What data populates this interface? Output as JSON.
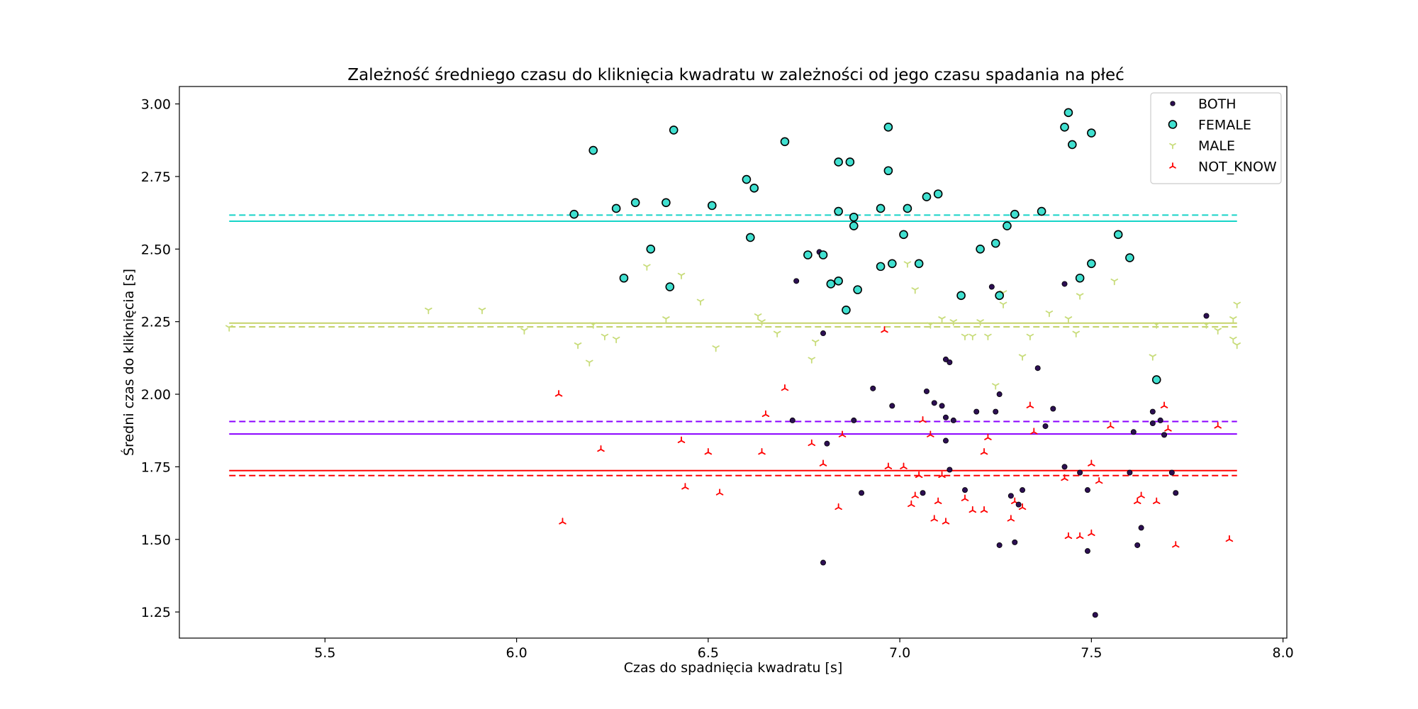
{
  "chart_data": {
    "type": "scatter",
    "title": "Zależność średniego czasu do kliknięcia kwadratu w zależności od jego czasu spadania na płeć",
    "xlabel": "Czas do spadnięcia kwadratu [s]",
    "ylabel": "Średni czas do kliknięcia [s]",
    "xlim": [
      5.12,
      8.01
    ],
    "ylim": [
      1.16,
      3.06
    ],
    "xticks": [
      5.5,
      6.0,
      6.5,
      7.0,
      7.5,
      8.0
    ],
    "xtick_labels": [
      "5.5",
      "6.0",
      "6.5",
      "7.0",
      "7.5",
      "8.0"
    ],
    "yticks": [
      1.25,
      1.5,
      1.75,
      2.0,
      2.25,
      2.5,
      2.75,
      3.0
    ],
    "ytick_labels": [
      "1.25",
      "1.50",
      "1.75",
      "2.00",
      "2.25",
      "2.50",
      "2.75",
      "3.00"
    ],
    "grid": false,
    "legend_position": "top-right",
    "reference_lines_x_range": [
      5.25,
      7.88
    ],
    "series": [
      {
        "name": "BOTH",
        "marker": "dot",
        "color": "#2c0f52",
        "mean_solid": 1.863,
        "median_dashed": 1.906,
        "points": [
          [
            6.73,
            2.39
          ],
          [
            6.79,
            2.49
          ],
          [
            6.8,
            2.21
          ],
          [
            6.72,
            1.91
          ],
          [
            6.81,
            1.83
          ],
          [
            6.8,
            1.42
          ],
          [
            6.88,
            1.91
          ],
          [
            6.9,
            1.66
          ],
          [
            6.93,
            2.02
          ],
          [
            6.98,
            1.96
          ],
          [
            7.06,
            1.66
          ],
          [
            7.07,
            2.01
          ],
          [
            7.09,
            1.97
          ],
          [
            7.11,
            1.96
          ],
          [
            7.12,
            2.12
          ],
          [
            7.13,
            2.11
          ],
          [
            7.14,
            1.91
          ],
          [
            7.12,
            1.92
          ],
          [
            7.13,
            1.74
          ],
          [
            7.12,
            1.84
          ],
          [
            7.17,
            1.67
          ],
          [
            7.2,
            1.94
          ],
          [
            7.24,
            2.37
          ],
          [
            7.25,
            1.94
          ],
          [
            7.26,
            2.0
          ],
          [
            7.26,
            1.48
          ],
          [
            7.29,
            1.65
          ],
          [
            7.3,
            1.49
          ],
          [
            7.31,
            1.62
          ],
          [
            7.32,
            1.67
          ],
          [
            7.36,
            2.09
          ],
          [
            7.38,
            1.89
          ],
          [
            7.4,
            1.95
          ],
          [
            7.43,
            2.38
          ],
          [
            7.43,
            1.75
          ],
          [
            7.47,
            1.73
          ],
          [
            7.49,
            1.67
          ],
          [
            7.49,
            1.46
          ],
          [
            7.51,
            1.24
          ],
          [
            7.6,
            1.73
          ],
          [
            7.61,
            1.87
          ],
          [
            7.62,
            1.48
          ],
          [
            7.63,
            1.54
          ],
          [
            7.66,
            1.94
          ],
          [
            7.66,
            1.9
          ],
          [
            7.68,
            1.91
          ],
          [
            7.69,
            1.86
          ],
          [
            7.71,
            1.73
          ],
          [
            7.72,
            1.66
          ],
          [
            7.8,
            2.27
          ]
        ]
      },
      {
        "name": "FEMALE",
        "marker": "circle",
        "color": "#40e0d0",
        "mean_solid": 2.596,
        "median_dashed": 2.617,
        "points": [
          [
            6.15,
            2.62
          ],
          [
            6.2,
            2.84
          ],
          [
            6.26,
            2.64
          ],
          [
            6.28,
            2.4
          ],
          [
            6.31,
            2.66
          ],
          [
            6.35,
            2.5
          ],
          [
            6.39,
            2.66
          ],
          [
            6.4,
            2.37
          ],
          [
            6.41,
            2.91
          ],
          [
            6.51,
            2.65
          ],
          [
            6.6,
            2.74
          ],
          [
            6.61,
            2.54
          ],
          [
            6.62,
            2.71
          ],
          [
            6.7,
            2.87
          ],
          [
            6.76,
            2.48
          ],
          [
            6.8,
            2.48
          ],
          [
            6.82,
            2.38
          ],
          [
            6.84,
            2.39
          ],
          [
            6.84,
            2.63
          ],
          [
            6.84,
            2.8
          ],
          [
            6.86,
            2.29
          ],
          [
            6.87,
            2.8
          ],
          [
            6.88,
            2.58
          ],
          [
            6.88,
            2.61
          ],
          [
            6.89,
            2.36
          ],
          [
            6.95,
            2.64
          ],
          [
            6.95,
            2.44
          ],
          [
            6.97,
            2.92
          ],
          [
            6.97,
            2.77
          ],
          [
            6.98,
            2.45
          ],
          [
            7.01,
            2.55
          ],
          [
            7.02,
            2.64
          ],
          [
            7.05,
            2.45
          ],
          [
            7.07,
            2.68
          ],
          [
            7.1,
            2.69
          ],
          [
            7.16,
            2.34
          ],
          [
            7.21,
            2.5
          ],
          [
            7.25,
            2.52
          ],
          [
            7.26,
            2.34
          ],
          [
            7.28,
            2.58
          ],
          [
            7.3,
            2.62
          ],
          [
            7.37,
            2.63
          ],
          [
            7.43,
            2.92
          ],
          [
            7.44,
            2.97
          ],
          [
            7.45,
            2.86
          ],
          [
            7.47,
            2.4
          ],
          [
            7.5,
            2.9
          ],
          [
            7.5,
            2.45
          ],
          [
            7.57,
            2.55
          ],
          [
            7.6,
            2.47
          ],
          [
            7.67,
            2.05
          ]
        ]
      },
      {
        "name": "MALE",
        "marker": "tri_down",
        "color": "#c8dc7a",
        "mean_solid": 2.245,
        "median_dashed": 2.232,
        "points": [
          [
            5.25,
            2.23
          ],
          [
            5.77,
            2.29
          ],
          [
            5.91,
            2.29
          ],
          [
            6.02,
            2.22
          ],
          [
            6.16,
            2.17
          ],
          [
            6.19,
            2.11
          ],
          [
            6.2,
            2.24
          ],
          [
            6.23,
            2.2
          ],
          [
            6.26,
            2.19
          ],
          [
            6.34,
            2.44
          ],
          [
            6.39,
            2.26
          ],
          [
            6.43,
            2.41
          ],
          [
            6.48,
            2.32
          ],
          [
            6.52,
            2.16
          ],
          [
            6.63,
            2.27
          ],
          [
            6.64,
            2.25
          ],
          [
            6.68,
            2.21
          ],
          [
            6.77,
            2.12
          ],
          [
            6.78,
            2.18
          ],
          [
            7.02,
            2.45
          ],
          [
            7.04,
            2.36
          ],
          [
            7.08,
            2.24
          ],
          [
            7.11,
            2.26
          ],
          [
            7.14,
            2.25
          ],
          [
            7.17,
            2.2
          ],
          [
            7.19,
            2.2
          ],
          [
            7.21,
            2.25
          ],
          [
            7.23,
            2.2
          ],
          [
            7.25,
            2.03
          ],
          [
            7.27,
            2.35
          ],
          [
            7.27,
            2.31
          ],
          [
            7.32,
            2.13
          ],
          [
            7.34,
            2.2
          ],
          [
            7.39,
            2.28
          ],
          [
            7.44,
            2.26
          ],
          [
            7.46,
            2.21
          ],
          [
            7.47,
            2.34
          ],
          [
            7.56,
            2.39
          ],
          [
            7.66,
            2.13
          ],
          [
            7.67,
            2.24
          ],
          [
            7.8,
            2.24
          ],
          [
            7.83,
            2.22
          ],
          [
            7.87,
            2.19
          ],
          [
            7.87,
            2.26
          ],
          [
            7.88,
            2.17
          ],
          [
            7.88,
            2.31
          ]
        ]
      },
      {
        "name": "NOT_KNOW",
        "marker": "tri_up",
        "color": "#ff0000",
        "mean_solid": 1.737,
        "median_dashed": 1.72,
        "points": [
          [
            6.11,
            2.0
          ],
          [
            6.12,
            1.56
          ],
          [
            6.22,
            1.81
          ],
          [
            6.43,
            1.84
          ],
          [
            6.44,
            1.68
          ],
          [
            6.5,
            1.8
          ],
          [
            6.53,
            1.66
          ],
          [
            6.64,
            1.8
          ],
          [
            6.65,
            1.93
          ],
          [
            6.7,
            2.02
          ],
          [
            6.77,
            1.83
          ],
          [
            6.8,
            1.76
          ],
          [
            6.84,
            1.61
          ],
          [
            6.85,
            1.86
          ],
          [
            6.96,
            2.22
          ],
          [
            6.97,
            1.75
          ],
          [
            7.01,
            1.75
          ],
          [
            7.03,
            1.62
          ],
          [
            7.04,
            1.65
          ],
          [
            7.05,
            1.72
          ],
          [
            7.06,
            1.91
          ],
          [
            7.08,
            1.86
          ],
          [
            7.09,
            1.57
          ],
          [
            7.1,
            1.63
          ],
          [
            7.11,
            1.72
          ],
          [
            7.12,
            1.56
          ],
          [
            7.17,
            1.64
          ],
          [
            7.19,
            1.6
          ],
          [
            7.22,
            1.6
          ],
          [
            7.22,
            1.8
          ],
          [
            7.23,
            1.85
          ],
          [
            7.29,
            1.57
          ],
          [
            7.3,
            1.63
          ],
          [
            7.32,
            1.61
          ],
          [
            7.34,
            1.96
          ],
          [
            7.35,
            1.87
          ],
          [
            7.43,
            1.71
          ],
          [
            7.44,
            1.51
          ],
          [
            7.47,
            1.51
          ],
          [
            7.5,
            1.76
          ],
          [
            7.5,
            1.52
          ],
          [
            7.52,
            1.7
          ],
          [
            7.55,
            1.89
          ],
          [
            7.62,
            1.63
          ],
          [
            7.63,
            1.65
          ],
          [
            7.67,
            1.63
          ],
          [
            7.69,
            1.96
          ],
          [
            7.7,
            1.88
          ],
          [
            7.72,
            1.48
          ],
          [
            7.83,
            1.89
          ],
          [
            7.86,
            1.5
          ]
        ]
      }
    ]
  }
}
